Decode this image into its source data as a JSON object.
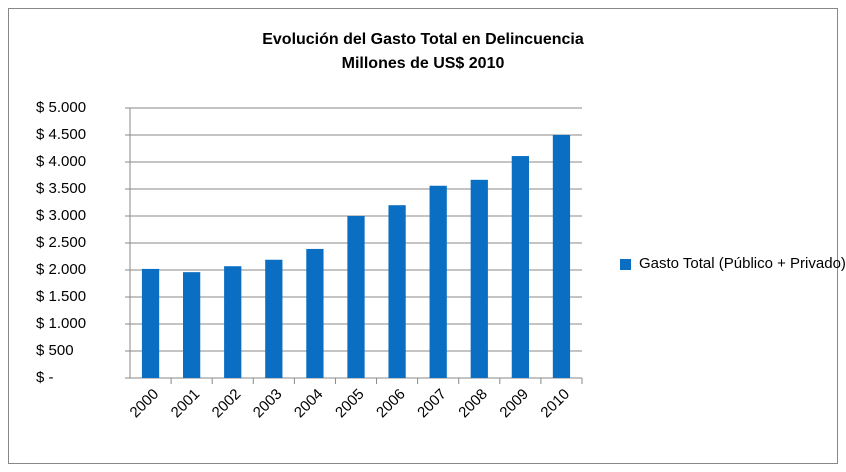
{
  "chart_data": {
    "type": "bar",
    "title": "Evolución del Gasto Total en Delincuencia",
    "subtitle": "Millones de US$ 2010",
    "categories": [
      "2000",
      "2001",
      "2002",
      "2003",
      "2004",
      "2005",
      "2006",
      "2007",
      "2008",
      "2009",
      "2010"
    ],
    "series": [
      {
        "name": "Gasto Total (Público + Privado)",
        "color": "#0a6fc2",
        "values": [
          2020,
          1960,
          2070,
          2190,
          2390,
          3000,
          3200,
          3560,
          3670,
          4110,
          4500
        ]
      }
    ],
    "ylim": [
      0,
      5000
    ],
    "yticks": [
      {
        "value": 0,
        "label": "$ -"
      },
      {
        "value": 500,
        "label": "$ 500"
      },
      {
        "value": 1000,
        "label": "$ 1.000"
      },
      {
        "value": 1500,
        "label": "$ 1.500"
      },
      {
        "value": 2000,
        "label": "$ 2.000"
      },
      {
        "value": 2500,
        "label": "$ 2.500"
      },
      {
        "value": 3000,
        "label": "$ 3.000"
      },
      {
        "value": 3500,
        "label": "$ 3.500"
      },
      {
        "value": 4000,
        "label": "$ 4.000"
      },
      {
        "value": 4500,
        "label": "$ 4.500"
      },
      {
        "value": 5000,
        "label": "$ 5.000"
      }
    ],
    "grid": true,
    "legend": "right"
  }
}
